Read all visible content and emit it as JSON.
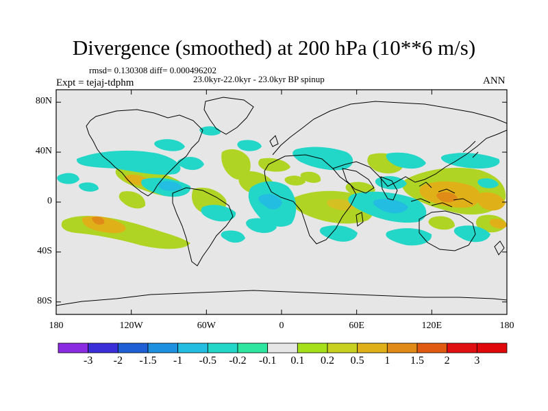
{
  "title": "Divergence (smoothed) at 200 hPa (10**6 m/s)",
  "stats": "rmsd= 0.130308 diff= 0.000496202",
  "period": "23.0kyr-22.0kyr - 23.0kyr BP spinup",
  "experiment": "Expt = tejaj-tdphm",
  "season": "ANN",
  "map": {
    "projection": "cylindrical equidistant",
    "lon_range": [
      -180,
      180
    ],
    "lat_range": [
      -90,
      90
    ],
    "background_color": "#e6e6e6",
    "y_ticks": [
      {
        "lat": 80,
        "label": "80N"
      },
      {
        "lat": 40,
        "label": "40N"
      },
      {
        "lat": 0,
        "label": "0"
      },
      {
        "lat": -40,
        "label": "40S"
      },
      {
        "lat": -80,
        "label": "80S"
      }
    ],
    "x_ticks": [
      {
        "lon": -180,
        "label": "180"
      },
      {
        "lon": -120,
        "label": "120W"
      },
      {
        "lon": -60,
        "label": "60W"
      },
      {
        "lon": 0,
        "label": "0"
      },
      {
        "lon": 60,
        "label": "60E"
      },
      {
        "lon": 120,
        "label": "120E"
      },
      {
        "lon": 180,
        "label": "180"
      }
    ]
  },
  "colorbar": {
    "levels": [
      "-3",
      "-2",
      "-1.5",
      "-1",
      "-0.5",
      "-0.2",
      "-0.1",
      "0.1",
      "0.2",
      "0.5",
      "1",
      "1.5",
      "2",
      "3"
    ],
    "colors": [
      "#8a2be2",
      "#3a2ed8",
      "#1f5fd6",
      "#1e90e0",
      "#22bde0",
      "#22d6c8",
      "#2ee6a0",
      "#e6e6e6",
      "#a6e01a",
      "#c8d020",
      "#e0b018",
      "#e08a18",
      "#e05a12",
      "#e01010",
      "#e00808"
    ]
  },
  "chart_data": {
    "type": "heatmap",
    "title": "Divergence (smoothed) at 200 hPa (10**6 m/s)",
    "variable": "divergence difference, 200 hPa, annual mean (ANN)",
    "rmsd": 0.130308,
    "diff": 0.000496202,
    "color_levels": [
      -3,
      -2,
      -1.5,
      -1,
      -0.5,
      -0.2,
      -0.1,
      0.1,
      0.2,
      0.5,
      1,
      1.5,
      2,
      3
    ],
    "regions": [
      {
        "name": "central-pacific-south",
        "lon": [
          -175,
          -100
        ],
        "lat": [
          -40,
          -10
        ],
        "value": 0.5,
        "peak": 1.5
      },
      {
        "name": "east-pacific-north-band",
        "lon": [
          -150,
          -85
        ],
        "lat": [
          10,
          30
        ],
        "value": 0.3
      },
      {
        "name": "north-pacific-negative",
        "lon": [
          -180,
          -135
        ],
        "lat": [
          15,
          22
        ],
        "value": -0.2
      },
      {
        "name": "north-america-negative",
        "lon": [
          -175,
          -105
        ],
        "lat": [
          30,
          40
        ],
        "value": -0.3
      },
      {
        "name": "central-america-negative",
        "lon": [
          -110,
          -70
        ],
        "lat": [
          -12,
          15
        ],
        "value": -0.3
      },
      {
        "name": "atlantic-north-positive",
        "lon": [
          -50,
          -10
        ],
        "lat": [
          10,
          35
        ],
        "value": 0.3
      },
      {
        "name": "atlantic-equatorial-negative",
        "lon": [
          -30,
          10
        ],
        "lat": [
          -30,
          15
        ],
        "value": -0.5
      },
      {
        "name": "africa-equatorial-positive",
        "lon": [
          5,
          50
        ],
        "lat": [
          -20,
          10
        ],
        "value": 0.3
      },
      {
        "name": "eurasia-negative-band",
        "lon": [
          10,
          90
        ],
        "lat": [
          25,
          45
        ],
        "value": -0.2
      },
      {
        "name": "indian-ocean-negative",
        "lon": [
          50,
          100
        ],
        "lat": [
          -20,
          0
        ],
        "value": -0.5
      },
      {
        "name": "maritime-continent-positive",
        "lon": [
          100,
          160
        ],
        "lat": [
          -5,
          25
        ],
        "value": 0.8,
        "peak": 1.2
      },
      {
        "name": "south-indian-negative",
        "lon": [
          50,
          115
        ],
        "lat": [
          -38,
          -25
        ],
        "value": -0.2
      },
      {
        "name": "south-pacific-positive",
        "lon": [
          140,
          180
        ],
        "lat": [
          -20,
          -10
        ],
        "value": 0.5
      }
    ]
  }
}
